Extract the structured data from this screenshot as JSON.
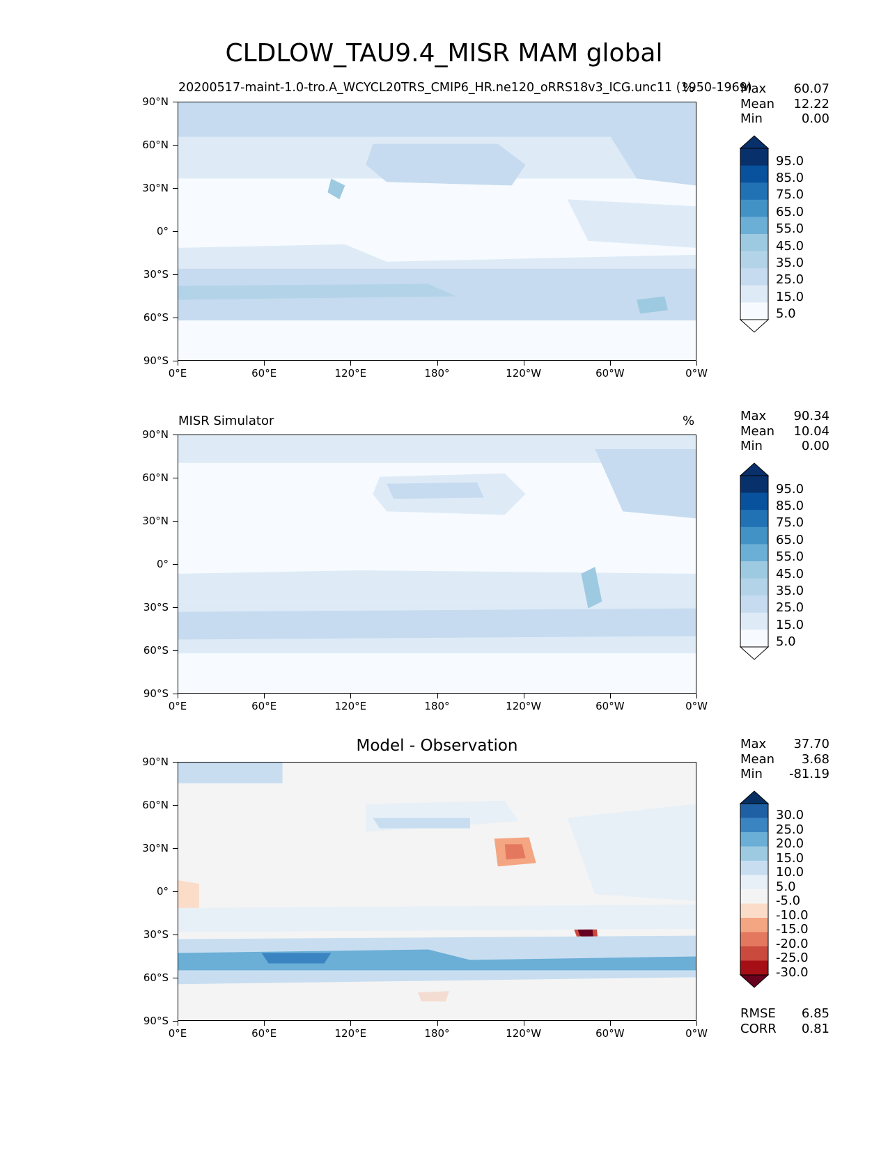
{
  "title": "CLDLOW_TAU9.4_MISR MAM global",
  "lat_ticks": [
    "90°N",
    "60°N",
    "30°N",
    "0°",
    "30°S",
    "60°S",
    "90°S"
  ],
  "lon_ticks": [
    "0°E",
    "60°E",
    "120°E",
    "180°",
    "120°W",
    "60°W",
    "0°W"
  ],
  "panels": [
    {
      "subtitle_left": "20200517-maint-1.0-tro.A_WCYCL20TRS_CMIP6_HR.ne120_oRRS18v3_ICG.unc11 (1950-1969)",
      "units": "%",
      "stats": [
        [
          "Max",
          "60.07"
        ],
        [
          "Mean",
          "12.22"
        ],
        [
          "Min",
          "0.00"
        ]
      ],
      "colorbar_labels": [
        "95.0",
        "85.0",
        "75.0",
        "65.0",
        "55.0",
        "45.0",
        "35.0",
        "25.0",
        "15.0",
        "5.0"
      ]
    },
    {
      "subtitle_left": "MISR Simulator",
      "units": "%",
      "stats": [
        [
          "Max",
          "90.34"
        ],
        [
          "Mean",
          "10.04"
        ],
        [
          "Min",
          "0.00"
        ]
      ],
      "colorbar_labels": [
        "95.0",
        "85.0",
        "75.0",
        "65.0",
        "55.0",
        "45.0",
        "35.0",
        "25.0",
        "15.0",
        "5.0"
      ]
    },
    {
      "subtitle_center": "Model - Observation",
      "stats": [
        [
          "Max",
          "37.70"
        ],
        [
          "Mean",
          "3.68"
        ],
        [
          "Min",
          "-81.19"
        ]
      ],
      "colorbar_labels": [
        "30.0",
        "25.0",
        "20.0",
        "15.0",
        "10.0",
        "5.0",
        "-5.0",
        "-10.0",
        "-15.0",
        "-20.0",
        "-25.0",
        "-30.0"
      ],
      "bottom_stats": [
        [
          "RMSE",
          "6.85"
        ],
        [
          "CORR",
          "0.81"
        ]
      ]
    }
  ],
  "colors": {
    "blues": [
      "#f7fbff",
      "#deebf7",
      "#c6dbef",
      "#b3d3e8",
      "#9ecae1",
      "#6baed6",
      "#4292c6",
      "#2171b5",
      "#08519c",
      "#08306b"
    ],
    "diff": [
      "#67001f",
      "#a50f15",
      "#cb4a3e",
      "#e4785f",
      "#f4a582",
      "#fbdcc8",
      "#f4f4f4",
      "#e8f0f7",
      "#c8def0",
      "#9ecae1",
      "#6baed6",
      "#3a85c1",
      "#1f5fa3",
      "#053061"
    ]
  }
}
